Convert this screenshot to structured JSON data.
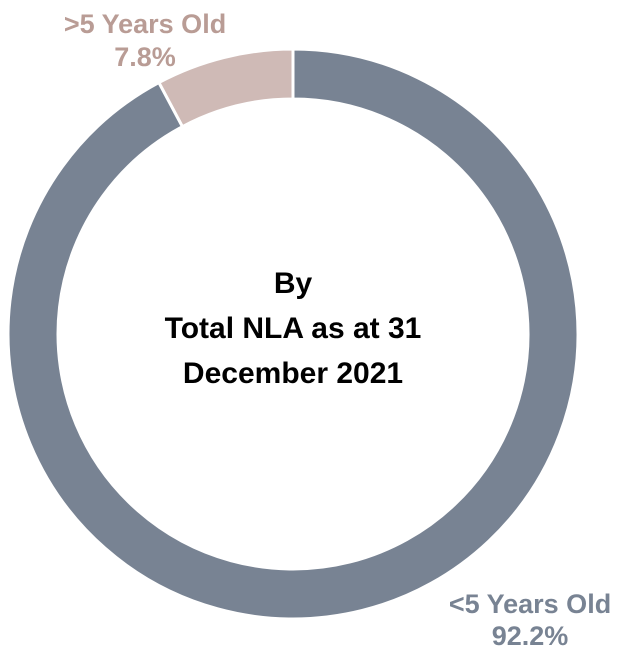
{
  "chart_data": {
    "type": "pie",
    "donut": true,
    "title": "",
    "slices": [
      {
        "name": ">5 Years Old",
        "value": 7.8,
        "label": "7.8%",
        "color": "#cfbab6"
      },
      {
        "name": "<5 Years Old",
        "value": 92.2,
        "label": "92.2%",
        "color": "#788393"
      }
    ],
    "center_text": [
      "By",
      "Total NLA as at 31",
      "December 2021"
    ],
    "legend": "none"
  }
}
